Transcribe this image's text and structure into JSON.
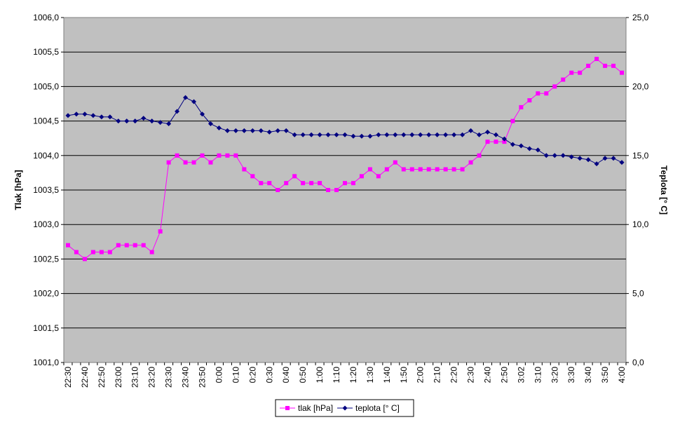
{
  "chart_data": {
    "type": "line",
    "title": "",
    "xlabel": "",
    "ylabel": "Tlak [hPa]",
    "y2label": "Teplota [° C]",
    "ylim": [
      1001.0,
      1006.0
    ],
    "y2lim": [
      0.0,
      25.0
    ],
    "y_ticks": [
      "1001,0",
      "1001,5",
      "1002,0",
      "1002,5",
      "1003,0",
      "1003,5",
      "1004,0",
      "1004,5",
      "1005,0",
      "1005,5",
      "1006,0"
    ],
    "y2_ticks": [
      "0,0",
      "5,0",
      "10,0",
      "15,0",
      "20,0",
      "25,0"
    ],
    "grid": true,
    "legend_position": "bottom-center",
    "plot_background": "#c0c0c0",
    "x": [
      "22:30",
      "22:35",
      "22:40",
      "22:45",
      "22:50",
      "22:55",
      "23:00",
      "23:05",
      "23:10",
      "23:15",
      "23:20",
      "23:25",
      "23:30",
      "23:35",
      "23:40",
      "23:45",
      "23:50",
      "23:55",
      "0:00",
      "0:05",
      "0:10",
      "0:15",
      "0:20",
      "0:25",
      "0:30",
      "0:35",
      "0:40",
      "0:45",
      "0:50",
      "0:55",
      "1:00",
      "1:05",
      "1:10",
      "1:15",
      "1:20",
      "1:25",
      "1:30",
      "1:35",
      "1:40",
      "1:45",
      "1:50",
      "1:55",
      "2:00",
      "2:05",
      "2:10",
      "2:15",
      "2:20",
      "2:25",
      "2:30",
      "2:35",
      "2:40",
      "2:45",
      "2:50",
      "2:56",
      "3:02",
      "3:06",
      "3:10",
      "3:15",
      "3:20",
      "3:25",
      "3:30",
      "3:35",
      "3:40",
      "3:45",
      "3:50",
      "3:55",
      "4:00"
    ],
    "x_tick_labels": [
      "22:30",
      "22:40",
      "22:50",
      "23:00",
      "23:10",
      "23:20",
      "23:30",
      "23:40",
      "23:50",
      "0:00",
      "0:10",
      "0:20",
      "0:30",
      "0:40",
      "0:50",
      "1:00",
      "1:10",
      "1:20",
      "1:30",
      "1:40",
      "1:50",
      "2:00",
      "2:10",
      "2:20",
      "2:30",
      "2:40",
      "2:50",
      "3:02",
      "3:10",
      "3:20",
      "3:30",
      "3:40",
      "3:50",
      "4:00"
    ],
    "series": [
      {
        "name": "tlak [hPa]",
        "axis": "left",
        "color": "#ff00ff",
        "marker": "square",
        "values": [
          1002.7,
          1002.6,
          1002.5,
          1002.6,
          1002.6,
          1002.6,
          1002.7,
          1002.7,
          1002.7,
          1002.7,
          1002.6,
          1002.9,
          1003.9,
          1004.0,
          1003.9,
          1003.9,
          1004.0,
          1003.9,
          1004.0,
          1004.0,
          1004.0,
          1003.8,
          1003.7,
          1003.6,
          1003.6,
          1003.5,
          1003.6,
          1003.7,
          1003.6,
          1003.6,
          1003.6,
          1003.5,
          1003.5,
          1003.6,
          1003.6,
          1003.7,
          1003.8,
          1003.7,
          1003.8,
          1003.9,
          1003.8,
          1003.8,
          1003.8,
          1003.8,
          1003.8,
          1003.8,
          1003.8,
          1003.8,
          1003.9,
          1004.0,
          1004.2,
          1004.2,
          1004.2,
          1004.5,
          1004.7,
          1004.8,
          1004.9,
          1004.9,
          1005.0,
          1005.1,
          1005.2,
          1005.2,
          1005.3,
          1005.4,
          1005.3,
          1005.3,
          1005.2
        ]
      },
      {
        "name": "teplota [° C]",
        "axis": "right",
        "color": "#000080",
        "marker": "diamond",
        "values": [
          17.9,
          18.0,
          18.0,
          17.9,
          17.8,
          17.8,
          17.5,
          17.5,
          17.5,
          17.7,
          17.5,
          17.4,
          17.3,
          18.2,
          19.2,
          18.9,
          18.0,
          17.3,
          17.0,
          16.8,
          16.8,
          16.8,
          16.8,
          16.8,
          16.7,
          16.8,
          16.8,
          16.5,
          16.5,
          16.5,
          16.5,
          16.5,
          16.5,
          16.5,
          16.4,
          16.4,
          16.4,
          16.5,
          16.5,
          16.5,
          16.5,
          16.5,
          16.5,
          16.5,
          16.5,
          16.5,
          16.5,
          16.5,
          16.8,
          16.5,
          16.7,
          16.5,
          16.2,
          15.8,
          15.7,
          15.5,
          15.4,
          15.0,
          15.0,
          15.0,
          14.9,
          14.8,
          14.7,
          14.4,
          14.8,
          14.8,
          14.5
        ]
      }
    ]
  }
}
